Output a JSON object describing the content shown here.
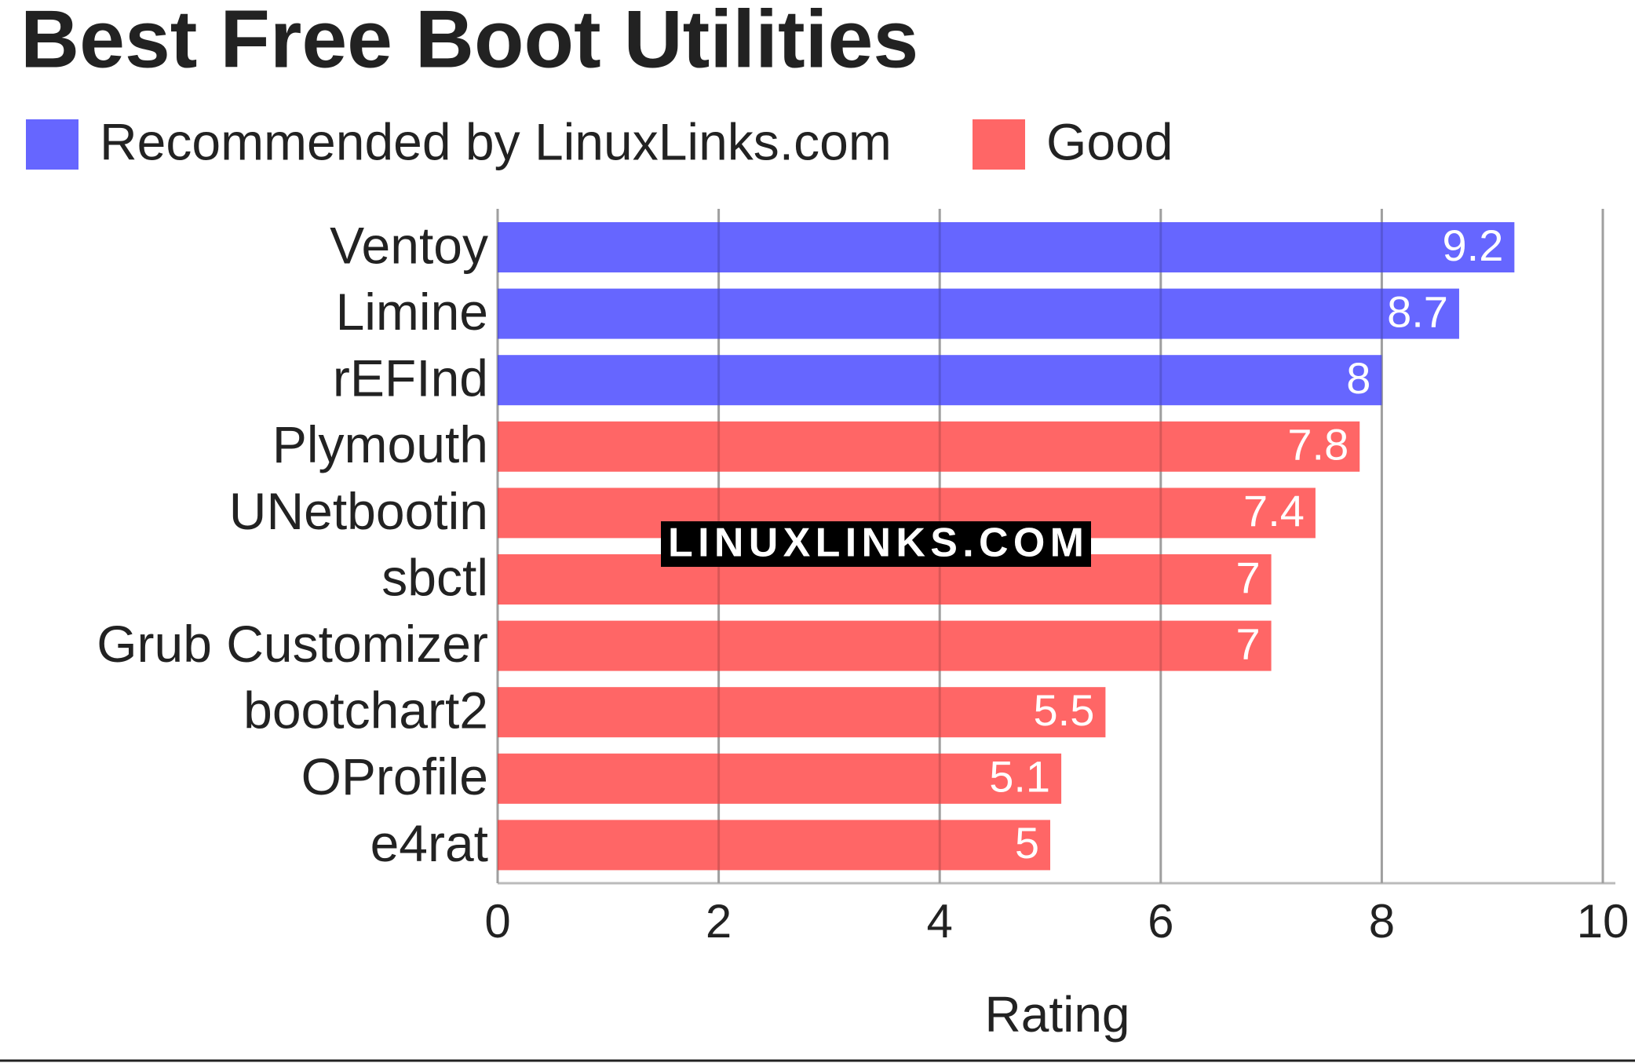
{
  "chart_data": {
    "type": "barh",
    "title": "Best Free Boot Utilities",
    "categories": [
      "Ventoy",
      "Limine",
      "rEFInd",
      "Plymouth",
      "UNetbootin",
      "sbctl",
      "Grub Customizer",
      "bootchart2",
      "OProfile",
      "e4rat"
    ],
    "series": [
      {
        "name": "Recommended by LinuxLinks.com",
        "color": "#6666ff",
        "values": [
          9.2,
          8.7,
          8,
          null,
          null,
          null,
          null,
          null,
          null,
          null
        ]
      },
      {
        "name": "Good",
        "color": "#ff6666",
        "values": [
          null,
          null,
          null,
          7.8,
          7.4,
          7,
          7,
          5.5,
          5.1,
          5
        ]
      }
    ],
    "xlabel": "Rating",
    "xlim": [
      0,
      10
    ],
    "xticks": [
      0,
      2,
      4,
      6,
      8,
      10
    ],
    "grid": true,
    "watermark": "LINUXLINKS.COM"
  }
}
